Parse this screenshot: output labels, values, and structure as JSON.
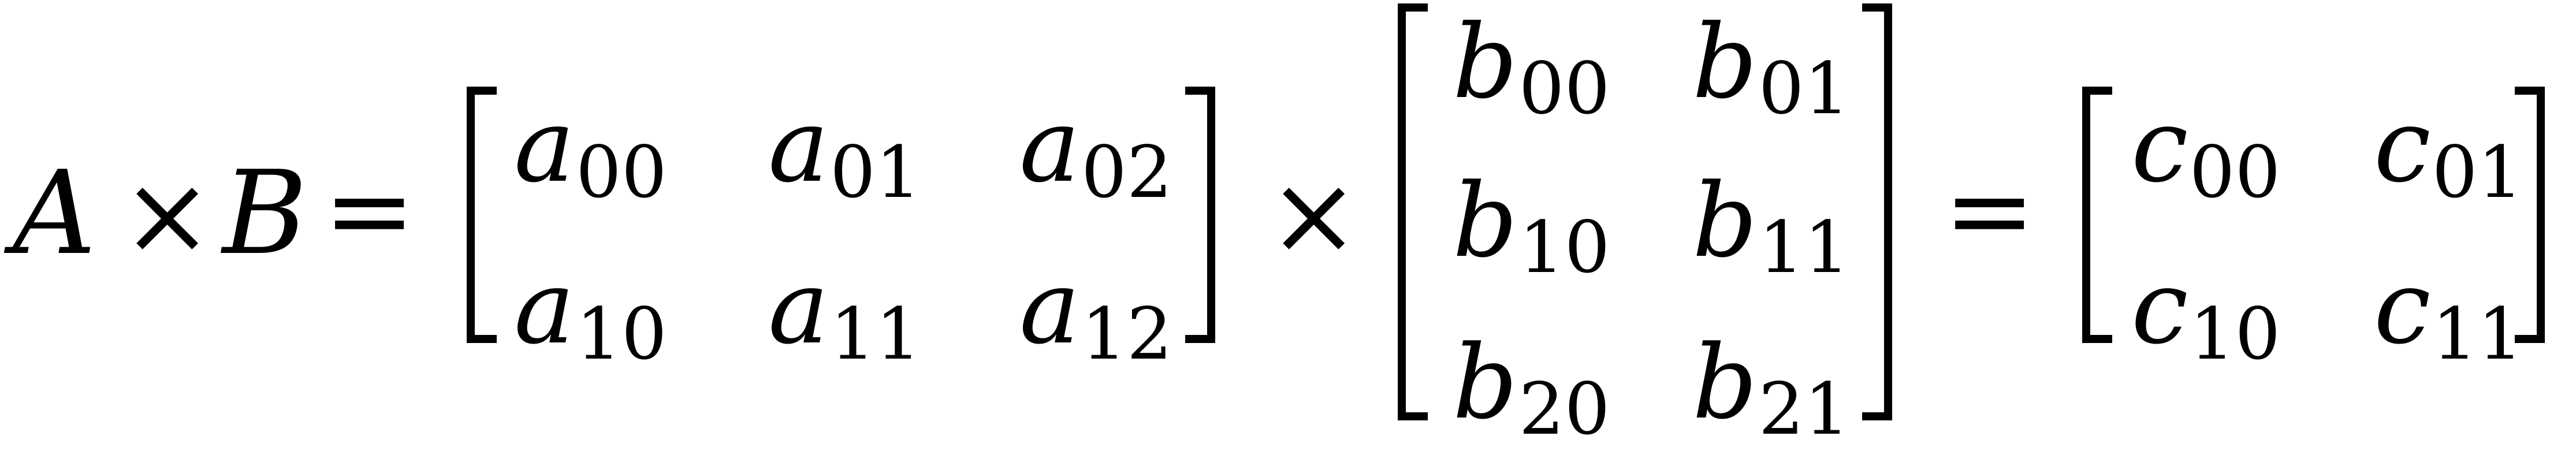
{
  "equation": {
    "lhs_a": "A",
    "times_1": "×",
    "lhs_b": "B",
    "equals_1": "=",
    "times_2": "×",
    "equals_2": "=",
    "matrix_a": {
      "base": "a",
      "subscripts": [
        [
          "00",
          "01",
          "02"
        ],
        [
          "10",
          "11",
          "12"
        ]
      ]
    },
    "matrix_b": {
      "base": "b",
      "subscripts": [
        [
          "00",
          "01"
        ],
        [
          "10",
          "11"
        ],
        [
          "20",
          "21"
        ]
      ]
    },
    "matrix_c": {
      "base": "c",
      "subscripts": [
        [
          "00",
          "01"
        ],
        [
          "10",
          "11"
        ]
      ]
    }
  }
}
